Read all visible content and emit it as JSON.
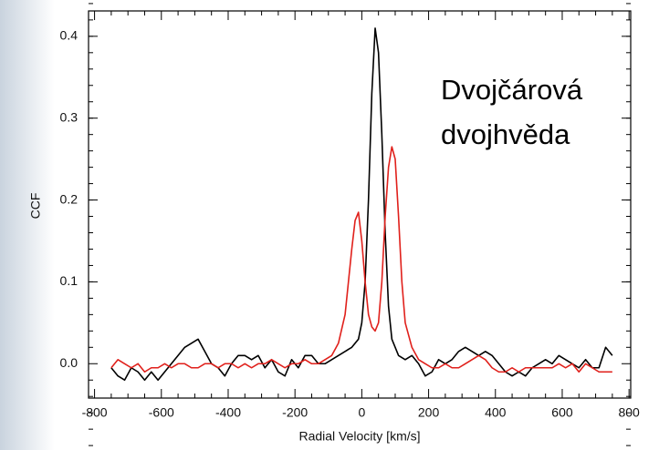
{
  "chart_data": {
    "type": "line",
    "annotation": [
      "Dvojčárová",
      "dvojhvěda"
    ],
    "xlabel": "Radial Velocity [km/s]",
    "ylabel": "CCF",
    "xlim": [
      -818,
      805
    ],
    "ylim": [
      -0.042,
      0.431
    ],
    "xticks": [
      -800,
      -600,
      -400,
      -200,
      0,
      200,
      400,
      600,
      800
    ],
    "yticks": [
      {
        "value": 0,
        "label": "0.0"
      },
      {
        "value": 0.1,
        "label": "0.1"
      },
      {
        "value": 0.2,
        "label": "0.2"
      },
      {
        "value": 0.3,
        "label": "0.3"
      },
      {
        "value": 0.4,
        "label": "0.4"
      }
    ],
    "series": [
      {
        "color": "#000000",
        "x": [
          -750,
          -730,
          -710,
          -690,
          -670,
          -650,
          -630,
          -610,
          -590,
          -570,
          -550,
          -530,
          -510,
          -490,
          -470,
          -450,
          -430,
          -410,
          -390,
          -370,
          -350,
          -330,
          -310,
          -290,
          -270,
          -250,
          -230,
          -210,
          -190,
          -170,
          -150,
          -130,
          -110,
          -90,
          -70,
          -50,
          -30,
          -10,
          0,
          10,
          20,
          30,
          40,
          50,
          60,
          70,
          80,
          90,
          110,
          130,
          150,
          170,
          190,
          210,
          230,
          250,
          270,
          290,
          310,
          330,
          350,
          370,
          390,
          410,
          430,
          450,
          470,
          490,
          510,
          530,
          550,
          570,
          590,
          610,
          630,
          650,
          670,
          690,
          710,
          730,
          750
        ],
        "values": [
          -0.005,
          -0.015,
          -0.02,
          -0.005,
          -0.01,
          -0.02,
          -0.01,
          -0.02,
          -0.01,
          0.0,
          0.01,
          0.02,
          0.025,
          0.03,
          0.015,
          0.0,
          -0.005,
          -0.015,
          0.0,
          0.01,
          0.01,
          0.005,
          0.01,
          -0.005,
          0.005,
          -0.01,
          -0.015,
          0.005,
          -0.005,
          0.01,
          0.01,
          0.0,
          0.0,
          0.005,
          0.01,
          0.015,
          0.02,
          0.03,
          0.05,
          0.1,
          0.2,
          0.33,
          0.41,
          0.38,
          0.28,
          0.16,
          0.07,
          0.03,
          0.01,
          0.005,
          0.01,
          0.0,
          -0.015,
          -0.01,
          0.005,
          0.0,
          0.005,
          0.015,
          0.02,
          0.015,
          0.01,
          0.015,
          0.01,
          0.0,
          -0.01,
          -0.015,
          -0.01,
          -0.015,
          -0.005,
          0.0,
          0.005,
          0.0,
          0.01,
          0.005,
          0.0,
          -0.005,
          0.005,
          -0.005,
          -0.005,
          0.02,
          0.01
        ]
      },
      {
        "color": "#e0201b",
        "x": [
          -750,
          -730,
          -710,
          -690,
          -670,
          -650,
          -630,
          -610,
          -590,
          -570,
          -550,
          -530,
          -510,
          -490,
          -470,
          -450,
          -430,
          -410,
          -390,
          -370,
          -350,
          -330,
          -310,
          -290,
          -270,
          -250,
          -230,
          -210,
          -190,
          -170,
          -150,
          -130,
          -110,
          -90,
          -70,
          -50,
          -40,
          -30,
          -20,
          -10,
          0,
          10,
          20,
          30,
          40,
          50,
          60,
          70,
          80,
          90,
          100,
          110,
          120,
          130,
          150,
          170,
          190,
          210,
          230,
          250,
          270,
          290,
          310,
          330,
          350,
          370,
          390,
          410,
          430,
          450,
          470,
          490,
          510,
          530,
          550,
          570,
          590,
          610,
          630,
          650,
          670,
          690,
          710,
          730,
          750
        ],
        "values": [
          -0.005,
          0.005,
          0.0,
          -0.005,
          0.0,
          -0.01,
          -0.005,
          -0.005,
          0.0,
          -0.005,
          0.0,
          0.0,
          -0.005,
          -0.005,
          0.0,
          0.0,
          -0.005,
          0.0,
          0.0,
          -0.005,
          0.0,
          -0.005,
          0.0,
          0.0,
          0.005,
          0.0,
          -0.005,
          0.0,
          0.0,
          0.005,
          0.0,
          0.0,
          0.005,
          0.01,
          0.025,
          0.06,
          0.1,
          0.14,
          0.175,
          0.185,
          0.15,
          0.1,
          0.06,
          0.045,
          0.04,
          0.05,
          0.1,
          0.18,
          0.24,
          0.265,
          0.25,
          0.18,
          0.1,
          0.05,
          0.02,
          0.005,
          0.0,
          -0.005,
          -0.005,
          0.0,
          -0.005,
          -0.005,
          0.0,
          0.005,
          0.01,
          0.005,
          -0.005,
          -0.01,
          -0.01,
          -0.005,
          -0.01,
          -0.005,
          -0.005,
          -0.005,
          -0.005,
          -0.005,
          0.0,
          -0.005,
          0.0,
          -0.01,
          0.0,
          -0.005,
          -0.01,
          -0.01,
          -0.01
        ]
      }
    ]
  }
}
